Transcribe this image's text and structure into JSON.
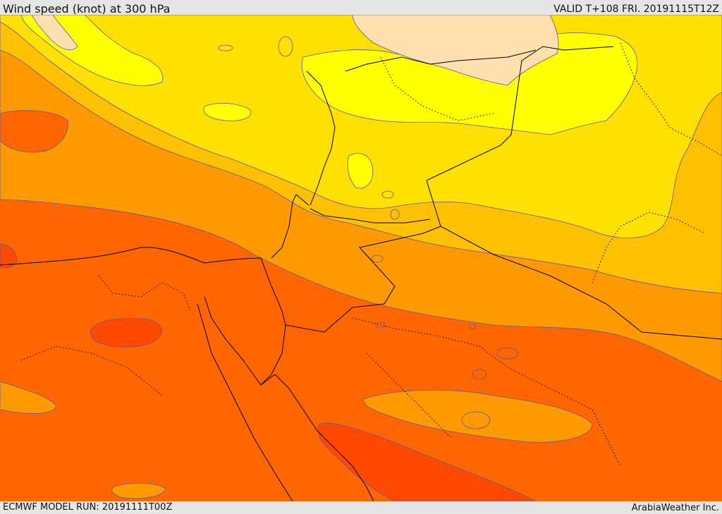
{
  "header": {
    "title": "Wind speed (knot) at 300 hPa",
    "valid_time": "VALID T+108 FRI. 20191115T12Z"
  },
  "footer": {
    "model_run": "ECMWF MODEL RUN: 20191111T00Z",
    "credit": "ArabiaWeather Inc."
  },
  "map": {
    "parameter": "wind speed",
    "level": "300 hPa",
    "units": "knot",
    "colors": {
      "peach": "#fde0ad",
      "bright_yellow": "#ffff00",
      "gold": "#ffe000",
      "amber": "#ffc000",
      "orange": "#ff9900",
      "dark_orange": "#ff6600",
      "red_orange": "#ff4800",
      "contour_line": "#5a5aa0",
      "border_line": "#000000"
    }
  }
}
